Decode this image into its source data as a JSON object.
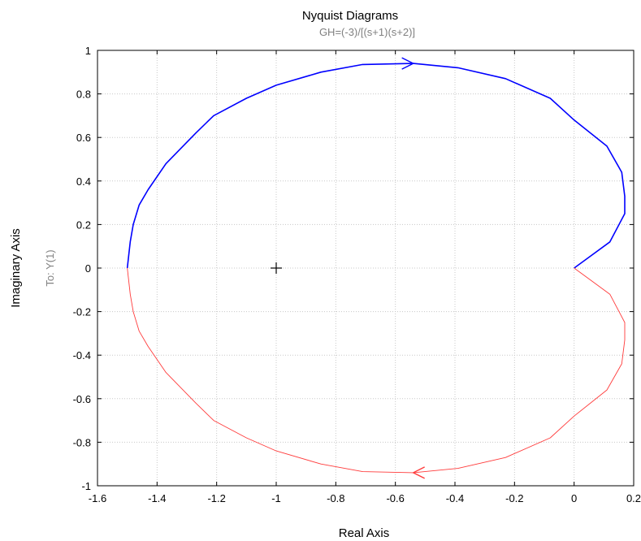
{
  "chart_data": {
    "type": "line",
    "title": "Nyquist Diagrams",
    "subtitle": "GH=(-3)/[(s+1)(s+2)]",
    "xlabel": "Real Axis",
    "ylabel": "Imaginary Axis",
    "output_label": "To: Y(1)",
    "xlim": [
      -1.6,
      0.2
    ],
    "ylim": [
      -1,
      1
    ],
    "xticks": [
      -1.6,
      -1.4,
      -1.2,
      -1,
      -0.8,
      -0.6,
      -0.4,
      -0.2,
      0,
      0.2
    ],
    "xtick_labels": [
      "-1.6",
      "-1.4",
      "-1.2",
      "-1",
      "-0.8",
      "-0.6",
      "-0.4",
      "-0.2",
      "0",
      "0.2"
    ],
    "yticks": [
      -1,
      -0.8,
      -0.6,
      -0.4,
      -0.2,
      0,
      0.2,
      0.4,
      0.6,
      0.8,
      1
    ],
    "ytick_labels": [
      "-1",
      "-0.8",
      "-0.6",
      "-0.4",
      "-0.2",
      "0",
      "0.2",
      "0.4",
      "0.6",
      "0.8",
      "1"
    ],
    "grid": true,
    "critical_point": [
      -1,
      0
    ],
    "colors": {
      "positive": "#0000ff",
      "negative": "#ff3b3b",
      "grid": "#c8c8c8",
      "axes": "#000000"
    },
    "series": [
      {
        "x": [
          0.0,
          0.05,
          0.12,
          0.17,
          0.17,
          0.16,
          0.11,
          0.0,
          -0.08,
          -0.23,
          -0.39,
          -0.54,
          -0.71,
          -0.85,
          -1.0,
          -1.1,
          -1.21,
          -1.27,
          -1.37,
          -1.43,
          -1.46,
          -1.48,
          -1.49,
          -1.495,
          -1.5
        ],
        "y": [
          0.0,
          0.05,
          0.12,
          0.25,
          0.33,
          0.44,
          0.56,
          0.68,
          0.78,
          0.87,
          0.92,
          0.94,
          0.935,
          0.9,
          0.84,
          0.78,
          0.7,
          0.62,
          0.48,
          0.36,
          0.29,
          0.2,
          0.12,
          0.06,
          0.0
        ]
      },
      {
        "x": [
          0.0,
          0.05,
          0.12,
          0.17,
          0.17,
          0.16,
          0.11,
          0.0,
          -0.08,
          -0.23,
          -0.39,
          -0.54,
          -0.71,
          -0.85,
          -1.0,
          -1.1,
          -1.21,
          -1.27,
          -1.37,
          -1.43,
          -1.46,
          -1.48,
          -1.49,
          -1.495,
          -1.5
        ],
        "y": [
          0.0,
          -0.05,
          -0.12,
          -0.25,
          -0.33,
          -0.44,
          -0.56,
          -0.68,
          -0.78,
          -0.87,
          -0.92,
          -0.94,
          -0.935,
          -0.9,
          -0.84,
          -0.78,
          -0.7,
          -0.62,
          -0.48,
          -0.36,
          -0.29,
          -0.2,
          -0.12,
          -0.06,
          0.0
        ]
      }
    ],
    "arrows": [
      {
        "at": [
          -0.54,
          0.94
        ],
        "direction": "right",
        "color": "positive"
      },
      {
        "at": [
          -0.54,
          -0.94
        ],
        "direction": "left",
        "color": "negative"
      }
    ]
  }
}
